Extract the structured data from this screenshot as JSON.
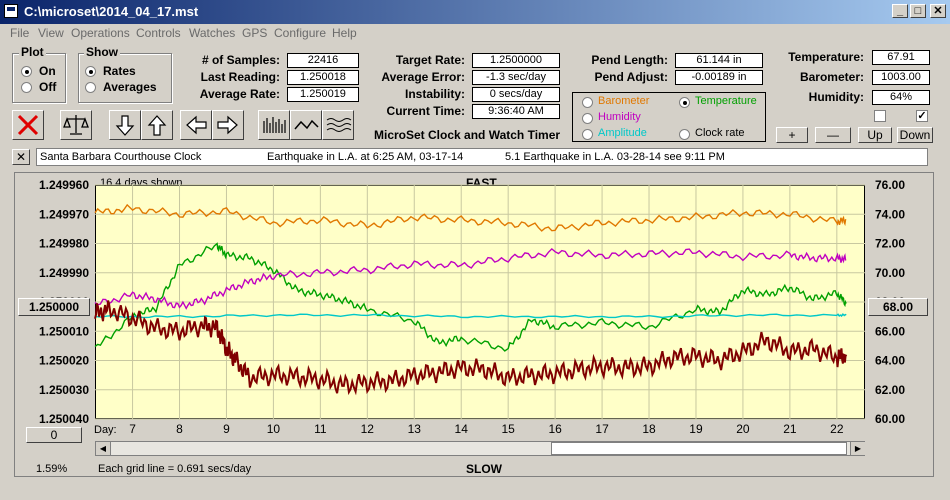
{
  "window": {
    "title": "C:\\microset\\2014_04_17.mst"
  },
  "menu": [
    "File",
    "View",
    "Operations",
    "Controls",
    "Watches",
    "GPS",
    "Configure",
    "Help"
  ],
  "plot_group": {
    "title": "Plot",
    "options": [
      "On",
      "Off"
    ],
    "selected": "On"
  },
  "show_group": {
    "title": "Show",
    "options": [
      "Rates",
      "Averages"
    ],
    "selected": "Rates"
  },
  "stats": {
    "samples_label": "# of Samples:",
    "samples": "22416",
    "last_reading_label": "Last Reading:",
    "last_reading": "1.250018",
    "average_rate_label": "Average Rate:",
    "average_rate": "1.250019"
  },
  "rates": {
    "target_rate_label": "Target Rate:",
    "target_rate": "1.2500000",
    "average_error_label": "Average Error:",
    "average_error": "-1.3 sec/day",
    "instability_label": "Instability:",
    "instability": "0 secs/day",
    "current_time_label": "Current Time:",
    "current_time": "9:36:40 AM"
  },
  "pend": {
    "length_label": "Pend Length:",
    "length": "61.144 in",
    "adjust_label": "Pend Adjust:",
    "adjust": "-0.00189 in"
  },
  "environment": {
    "temperature_label": "Temperature:",
    "temperature": "67.91",
    "barometer_label": "Barometer:",
    "barometer": "1003.00",
    "humidity_label": "Humidity:",
    "humidity": "64%",
    "checkbox1_checked": false,
    "checkbox2_checked": true
  },
  "sensor_select": {
    "options": [
      {
        "label": "Barometer",
        "color": "#e07800",
        "selected": false
      },
      {
        "label": "Temperature",
        "color": "#00a000",
        "selected": true
      },
      {
        "label": "Humidity",
        "color": "#c000c0",
        "selected": false
      },
      {
        "label": "Clock rate",
        "color": "#000000",
        "selected": false
      },
      {
        "label": "Amplitude",
        "color": "#00c8c8",
        "selected": false
      }
    ]
  },
  "adjust_buttons": [
    "+",
    "—",
    "Up",
    "Down"
  ],
  "app_subtitle": "MicroSet Clock and Watch Timer",
  "notes": {
    "close_label": "✕",
    "clock_name": "Santa Barbara Courthouse Clock",
    "note1": "Earthquake in L.A. at 6:25 AM, 03-17-14",
    "note2": "5.1 Earthquake in L.A. 03-28-14  see 9:11 PM"
  },
  "chart_header": {
    "days_shown": "16.4 days shown",
    "fast_label": "FAST",
    "slow_label": "SLOW"
  },
  "chart_footer": {
    "percent": "1.59%",
    "grid_note": "Each grid line = 0.691 secs/day",
    "day_label": "Day:",
    "left_button": "0",
    "mid_left_button": "1.250000",
    "mid_right_button": "68.00"
  },
  "chart_data": {
    "type": "line",
    "x": [
      6.2,
      22.6
    ],
    "x_ticks": [
      7,
      8,
      9,
      10,
      11,
      12,
      13,
      14,
      15,
      16,
      17,
      18,
      19,
      20,
      21,
      22
    ],
    "left_ticks": [
      "1.249960",
      "1.249970",
      "1.249980",
      "1.249990",
      "1.250000",
      "1.250010",
      "1.250020",
      "1.250030",
      "1.250040"
    ],
    "right_ticks": [
      "76.00",
      "74.00",
      "72.00",
      "70.00",
      "68.00",
      "66.00",
      "64.00",
      "62.00",
      "60.00"
    ],
    "ylim_left": [
      1.24996,
      1.25004
    ],
    "ylim_right": [
      60,
      76
    ],
    "series": [
      {
        "color": "#e07800",
        "x": [
          6.2,
          7,
          8,
          9,
          10,
          11,
          12,
          13,
          14,
          15,
          16,
          17,
          18,
          19,
          20,
          21,
          22,
          22.2
        ],
        "values": [
          74.1,
          74.4,
          74.0,
          74.2,
          73.4,
          73.6,
          73.2,
          73.8,
          73.6,
          73.4,
          73.0,
          73.4,
          73.6,
          73.8,
          74.1,
          74.0,
          73.5,
          73.6
        ]
      },
      {
        "color": "#00a000",
        "x": [
          6.2,
          7,
          7.5,
          8,
          8.8,
          9,
          9.5,
          10,
          10.5,
          11,
          11.5,
          12,
          13,
          13.5,
          14,
          15,
          15.5,
          16,
          17,
          18,
          19,
          19.5,
          20,
          20.5,
          21,
          21.5,
          22,
          22.2
        ],
        "values": [
          64.8,
          67.0,
          67.6,
          70.5,
          71.9,
          71.2,
          71.0,
          70.2,
          68.8,
          68.5,
          68.1,
          67.5,
          66.7,
          65.2,
          65.5,
          64.8,
          66.8,
          66.3,
          66.6,
          66.3,
          67.5,
          67.3,
          68.8,
          68.5,
          69.0,
          68.2,
          68.6,
          67.9
        ]
      },
      {
        "color": "#c000c0",
        "x": [
          6.2,
          7,
          7.5,
          8,
          8.5,
          9,
          9.5,
          10,
          11,
          12,
          13,
          14,
          15,
          16,
          17,
          18,
          19,
          20,
          21,
          21.5,
          22,
          22.2
        ],
        "values": [
          67.8,
          68.5,
          68.2,
          67.7,
          68.1,
          68.8,
          69.4,
          69.8,
          70.0,
          70.2,
          70.6,
          70.5,
          71.0,
          71.4,
          71.2,
          71.3,
          71.4,
          71.1,
          71.2,
          71.0,
          71.0,
          70.9
        ]
      },
      {
        "color": "#00c8c8",
        "x": [
          6.2,
          8,
          10,
          12,
          14,
          16,
          18,
          20,
          22,
          22.2
        ],
        "values": [
          67.0,
          67.0,
          67.1,
          67.1,
          67.0,
          67.0,
          67.0,
          67.1,
          67.1,
          67.1
        ]
      },
      {
        "color": "#800000",
        "x": [
          6.2,
          6.5,
          7,
          7.5,
          8,
          8.5,
          8.8,
          9,
          9.2,
          9.5,
          10,
          10.5,
          11,
          11.5,
          12,
          12.5,
          13,
          13.5,
          14,
          14.5,
          15,
          15.5,
          16,
          16.5,
          17,
          17.5,
          18,
          18.5,
          19,
          19.5,
          20,
          20.5,
          21,
          21.5,
          22,
          22.2
        ],
        "values": [
          67.2,
          67.5,
          66.9,
          66.2,
          66.0,
          66.4,
          66.2,
          64.8,
          64.0,
          62.8,
          63.0,
          62.9,
          62.7,
          62.3,
          62.5,
          62.6,
          63.0,
          63.2,
          63.5,
          63.4,
          62.8,
          63.0,
          63.1,
          63.4,
          63.6,
          63.5,
          63.6,
          64.2,
          64.3,
          64.0,
          64.6,
          65.4,
          64.6,
          64.8,
          64.2,
          64.4
        ]
      }
    ]
  }
}
